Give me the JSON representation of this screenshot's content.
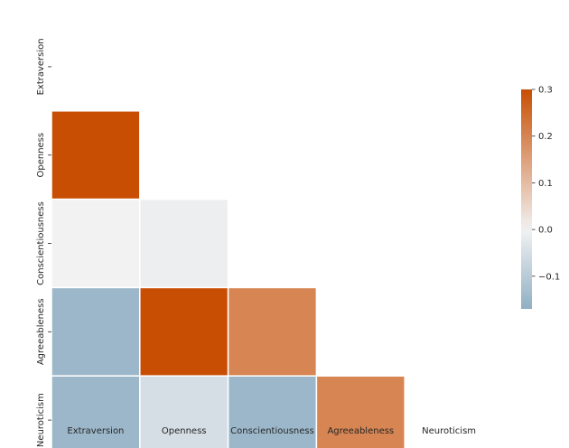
{
  "chart_data": {
    "type": "heatmap",
    "title": "",
    "mask": "upper-triangle",
    "x_labels": [
      "Extraversion",
      "Openness",
      "Conscientiousness",
      "Agreeableness",
      "Neuroticism"
    ],
    "y_labels": [
      "Extraversion",
      "Openness",
      "Conscientiousness",
      "Agreeableness",
      "Neuroticism"
    ],
    "cells": [
      {
        "row": 1,
        "col": 0,
        "value": 0.31
      },
      {
        "row": 2,
        "col": 0,
        "value": 0.0
      },
      {
        "row": 2,
        "col": 1,
        "value": -0.01
      },
      {
        "row": 3,
        "col": 0,
        "value": -0.15
      },
      {
        "row": 3,
        "col": 1,
        "value": 0.31
      },
      {
        "row": 3,
        "col": 2,
        "value": 0.2
      },
      {
        "row": 4,
        "col": 0,
        "value": -0.15
      },
      {
        "row": 4,
        "col": 1,
        "value": -0.05
      },
      {
        "row": 4,
        "col": 2,
        "value": -0.15
      },
      {
        "row": 4,
        "col": 3,
        "value": 0.2
      }
    ],
    "colorbar": {
      "vmin": -0.17,
      "vmax": 0.3,
      "ticks": [
        {
          "value": 0.3,
          "label": "0.3"
        },
        {
          "value": 0.2,
          "label": "0.2"
        },
        {
          "value": 0.1,
          "label": "0.1"
        },
        {
          "value": 0.0,
          "label": "0.0"
        },
        {
          "value": -0.1,
          "label": "−0.1"
        }
      ],
      "colors": {
        "negative": "#90afc5",
        "center": "#f2f2f2",
        "positive": "#c84e03"
      }
    },
    "grid": false
  }
}
